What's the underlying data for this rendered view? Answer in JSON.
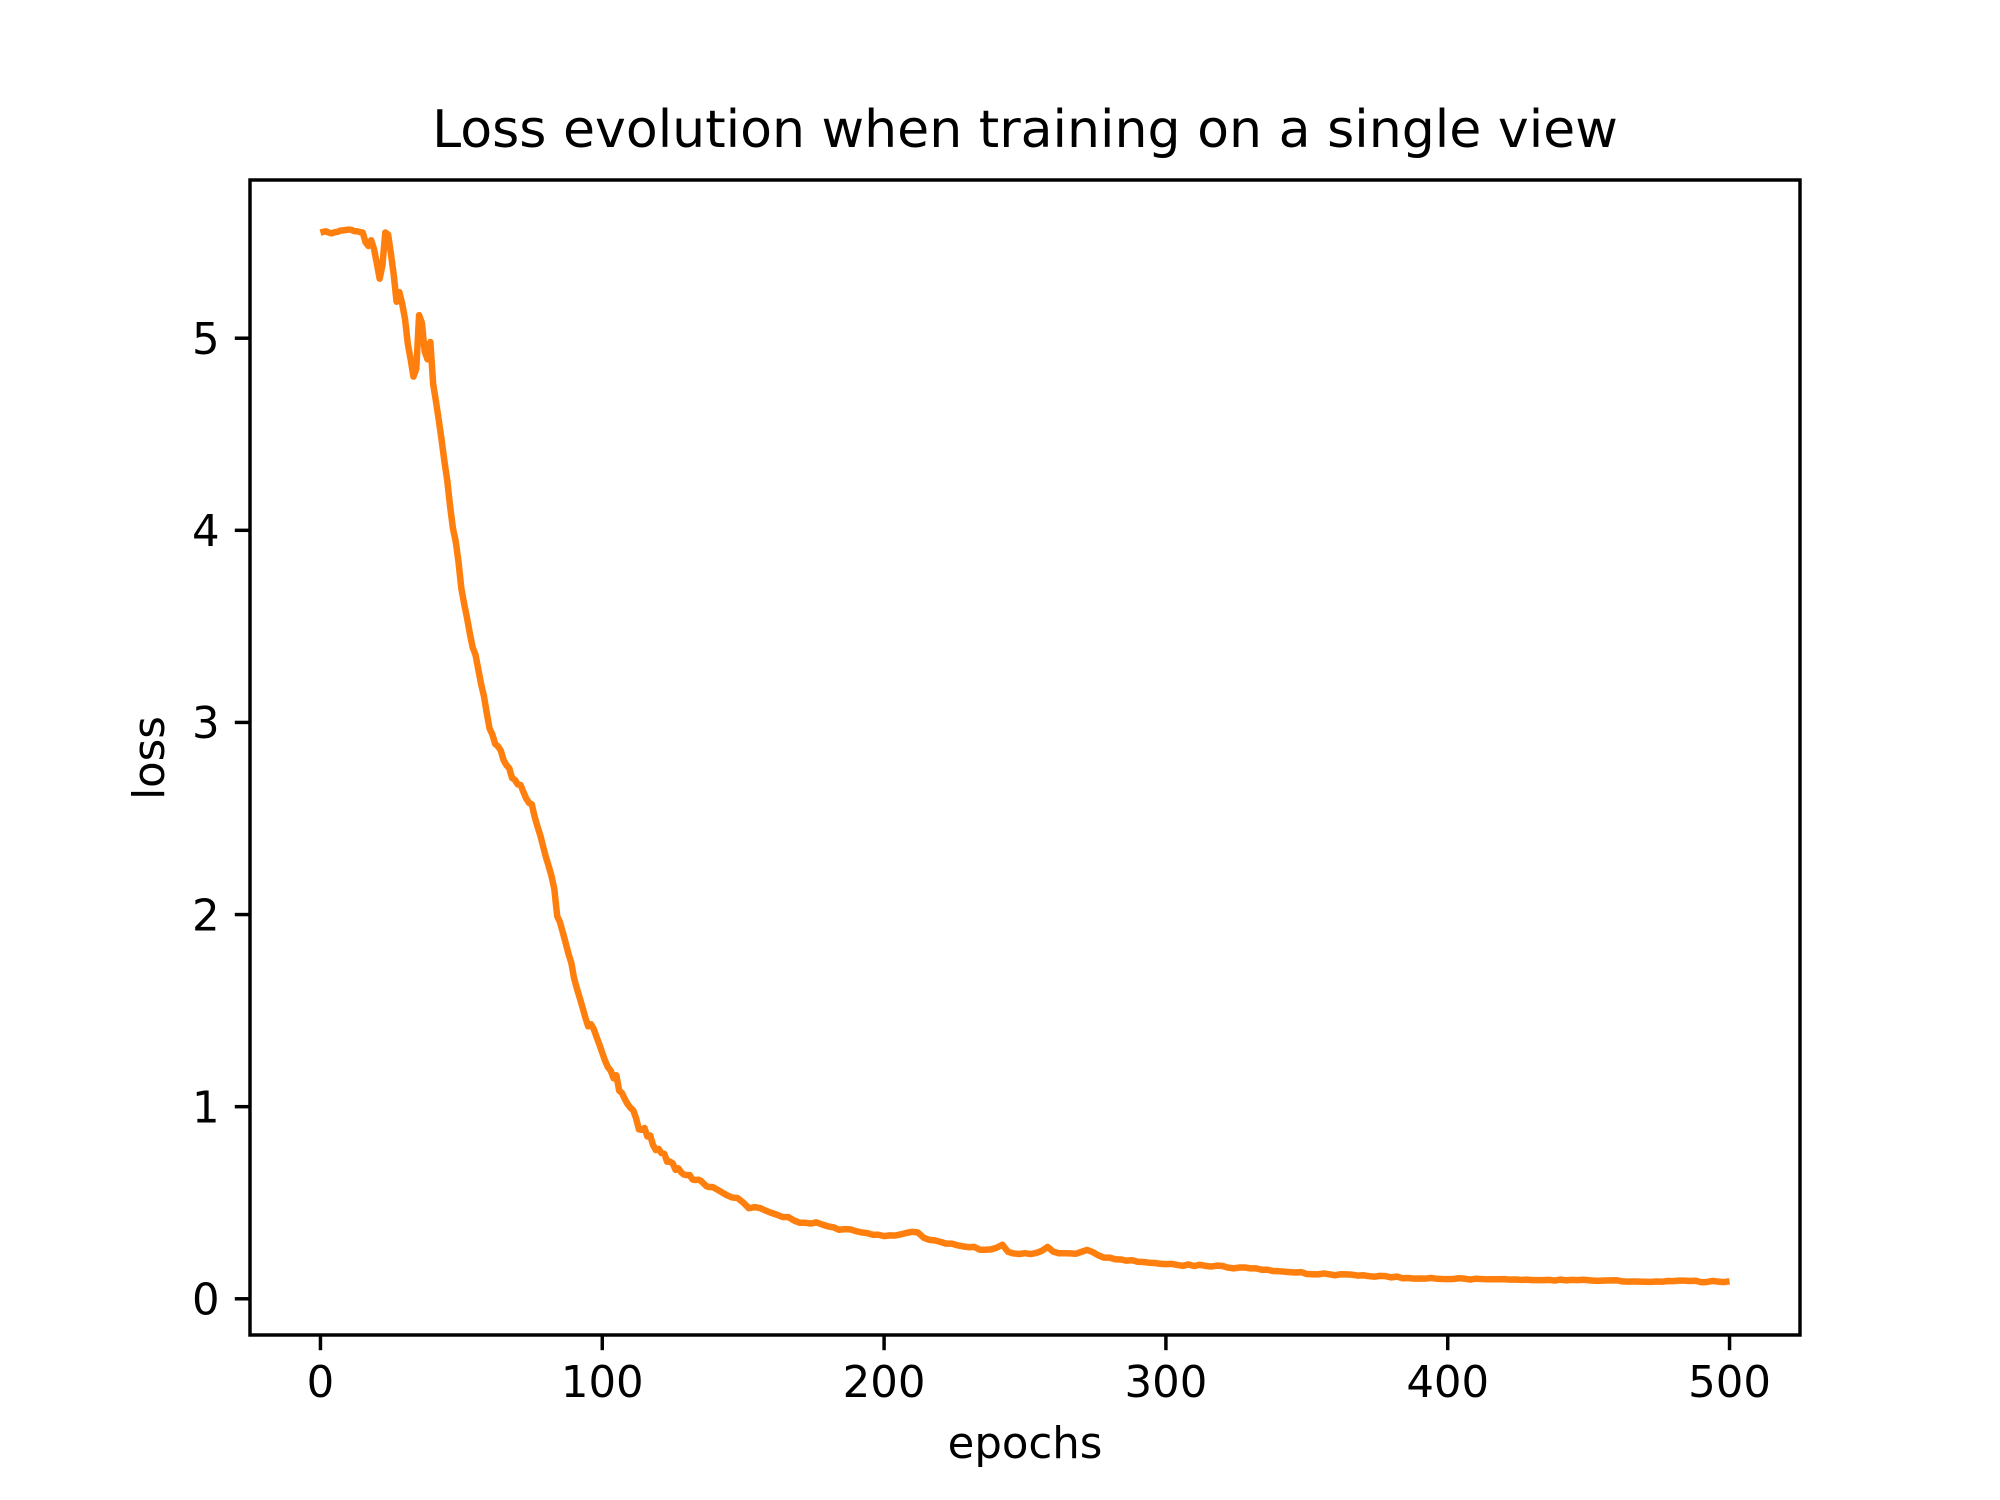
{
  "figure": {
    "title": "Loss evolution when training on a single view",
    "xlabel": "epochs",
    "ylabel": "loss"
  },
  "chart_data": {
    "type": "line",
    "title": "Loss evolution when training on a single view",
    "xlabel": "epochs",
    "ylabel": "loss",
    "grid": false,
    "legend": false,
    "background_color": "#ffffff",
    "line_color": "#ff7f0e",
    "axis_color": "#000000",
    "xlim": [
      -25,
      525
    ],
    "ylim": [
      -0.1885,
      5.8235
    ],
    "xticks": [
      0,
      100,
      200,
      300,
      400,
      500
    ],
    "yticks": [
      0,
      1,
      2,
      3,
      4,
      5
    ],
    "series": [
      {
        "x": [
          0,
          1,
          2,
          3,
          4,
          5,
          6,
          7,
          8,
          9,
          10,
          11,
          12,
          13,
          14,
          15,
          16,
          17,
          18,
          19,
          20,
          21,
          22,
          23,
          24,
          25,
          26,
          27,
          28,
          29,
          30,
          31,
          32,
          33,
          34,
          35,
          36,
          37,
          38,
          39,
          40,
          41,
          42,
          43,
          44,
          45,
          46,
          47,
          48,
          49,
          50,
          51,
          52,
          53,
          54,
          55,
          56,
          57,
          58,
          59,
          60,
          61,
          62,
          63,
          64,
          65,
          66,
          67,
          68,
          69,
          70,
          71,
          72,
          73,
          74,
          75,
          76,
          77,
          78,
          79,
          80,
          81,
          82,
          83,
          84,
          85,
          86,
          87,
          88,
          89,
          90,
          91,
          92,
          93,
          94,
          95,
          96,
          97,
          98,
          99,
          100,
          101,
          102,
          103,
          104,
          105,
          106,
          107,
          108,
          109,
          110,
          111,
          112,
          113,
          114,
          115,
          116,
          117,
          118,
          119,
          120,
          121,
          122,
          123,
          124,
          125,
          126,
          127,
          128,
          129,
          130,
          131,
          132,
          133,
          134,
          135,
          136,
          137,
          138,
          139,
          140,
          142,
          144,
          146,
          148,
          150,
          152,
          154,
          156,
          158,
          160,
          162,
          164,
          166,
          168,
          170,
          172,
          174,
          176,
          178,
          180,
          182,
          184,
          186,
          188,
          190,
          192,
          194,
          196,
          198,
          200,
          202,
          204,
          206,
          208,
          210,
          212,
          214,
          216,
          218,
          220,
          222,
          224,
          226,
          228,
          230,
          232,
          234,
          236,
          238,
          240,
          242,
          244,
          246,
          248,
          250,
          252,
          254,
          256,
          258,
          260,
          262,
          264,
          266,
          268,
          270,
          272,
          274,
          276,
          278,
          280,
          282,
          284,
          286,
          288,
          290,
          292,
          294,
          296,
          298,
          300,
          302,
          304,
          306,
          308,
          310,
          312,
          314,
          316,
          318,
          320,
          322,
          324,
          326,
          328,
          330,
          332,
          334,
          336,
          338,
          340,
          342,
          344,
          346,
          348,
          350,
          352,
          354,
          356,
          358,
          360,
          362,
          364,
          366,
          368,
          370,
          372,
          374,
          376,
          378,
          380,
          382,
          384,
          386,
          388,
          390,
          392,
          394,
          396,
          398,
          400,
          402,
          404,
          406,
          408,
          410,
          412,
          414,
          416,
          418,
          420,
          422,
          424,
          426,
          428,
          430,
          432,
          434,
          436,
          438,
          440,
          442,
          444,
          446,
          448,
          450,
          452,
          454,
          456,
          458,
          460,
          462,
          464,
          466,
          468,
          470,
          472,
          474,
          476,
          478,
          480,
          482,
          484,
          486,
          488,
          490,
          492,
          494,
          496,
          498,
          500
        ],
        "y": [
          5.5498,
          5.5538,
          5.5563,
          5.5496,
          5.5461,
          5.5515,
          5.5532,
          5.56,
          5.5615,
          5.5633,
          5.5655,
          5.5638,
          5.5572,
          5.557,
          5.5523,
          5.55,
          5.5,
          5.48,
          5.51,
          5.465,
          5.39,
          5.31,
          5.38,
          5.55,
          5.54,
          5.44,
          5.33,
          5.19,
          5.24,
          5.18,
          5.1,
          4.97,
          4.89,
          4.8,
          4.84,
          5.12,
          5.08,
          4.93,
          4.89,
          4.98,
          4.76,
          4.67,
          4.5723,
          4.4694,
          4.3572,
          4.2587,
          4.1254,
          4.0112,
          3.9414,
          3.8339,
          3.6966,
          3.6167,
          3.5446,
          3.4642,
          3.3907,
          3.3536,
          3.2767,
          3.2003,
          3.1374,
          3.05,
          2.9687,
          2.9377,
          2.8883,
          2.8755,
          2.8533,
          2.8033,
          2.7773,
          2.7615,
          2.7105,
          2.7012,
          2.6773,
          2.6747,
          2.6389,
          2.6046,
          2.5813,
          2.5733,
          2.5092,
          2.459,
          2.413,
          2.3548,
          2.2994,
          2.251,
          2.1995,
          2.1309,
          1.992,
          1.9602,
          1.9067,
          1.8525,
          1.796,
          1.7499,
          1.6682,
          1.6144,
          1.5665,
          1.5162,
          1.4638,
          1.4182,
          1.429,
          1.4029,
          1.3616,
          1.322,
          1.2801,
          1.2386,
          1.2057,
          1.1869,
          1.148,
          1.1633,
          1.0835,
          1.0707,
          1.0395,
          1.013,
          0.9943,
          0.9807,
          0.9395,
          0.8819,
          0.88,
          0.889,
          0.8447,
          0.8507,
          0.8004,
          0.7747,
          0.7799,
          0.7581,
          0.7548,
          0.7141,
          0.7144,
          0.7047,
          0.6712,
          0.6793,
          0.6581,
          0.6463,
          0.6434,
          0.644,
          0.6214,
          0.618,
          0.6201,
          0.6136,
          0.5997,
          0.586,
          0.5816,
          0.5822,
          0.5752,
          0.5581,
          0.5406,
          0.5276,
          0.5242,
          0.5011,
          0.4713,
          0.4771,
          0.4723,
          0.4587,
          0.4472,
          0.4374,
          0.4256,
          0.4252,
          0.4078,
          0.3961,
          0.3957,
          0.3916,
          0.3978,
          0.3867,
          0.3774,
          0.3722,
          0.3592,
          0.3626,
          0.3616,
          0.3521,
          0.3454,
          0.3417,
          0.3335,
          0.3333,
          0.3261,
          0.3301,
          0.3294,
          0.3357,
          0.3431,
          0.3486,
          0.3452,
          0.3184,
          0.3064,
          0.3039,
          0.2963,
          0.2872,
          0.287,
          0.2786,
          0.2729,
          0.2684,
          0.2703,
          0.2551,
          0.2553,
          0.2574,
          0.2664,
          0.2812,
          0.244,
          0.236,
          0.233,
          0.2374,
          0.2329,
          0.2386,
          0.2499,
          0.2701,
          0.2457,
          0.237,
          0.2368,
          0.2365,
          0.2342,
          0.2442,
          0.2544,
          0.2435,
          0.2263,
          0.2142,
          0.2143,
          0.2056,
          0.2048,
          0.1985,
          0.2008,
          0.1927,
          0.1916,
          0.1878,
          0.1862,
          0.1823,
          0.1807,
          0.1819,
          0.176,
          0.1716,
          0.1786,
          0.1704,
          0.1767,
          0.1715,
          0.1678,
          0.1725,
          0.1711,
          0.1624,
          0.1584,
          0.1627,
          0.1631,
          0.1583,
          0.1584,
          0.1514,
          0.1513,
          0.1444,
          0.1437,
          0.1411,
          0.1389,
          0.1368,
          0.139,
          0.1287,
          0.1276,
          0.127,
          0.1318,
          0.1272,
          0.1224,
          0.1277,
          0.127,
          0.1256,
          0.1207,
          0.1225,
          0.1177,
          0.115,
          0.1194,
          0.1177,
          0.1113,
          0.1152,
          0.1069,
          0.1081,
          0.1049,
          0.1054,
          0.1047,
          0.1085,
          0.1046,
          0.1031,
          0.1025,
          0.1031,
          0.1071,
          0.1047,
          0.1002,
          0.1045,
          0.1027,
          0.1014,
          0.1014,
          0.1018,
          0.1024,
          0.0996,
          0.1003,
          0.0985,
          0.0995,
          0.0971,
          0.0969,
          0.0973,
          0.0986,
          0.0948,
          0.0997,
          0.096,
          0.0986,
          0.0971,
          0.0989,
          0.0965,
          0.0941,
          0.0937,
          0.0951,
          0.096,
          0.0964,
          0.0904,
          0.0896,
          0.0897,
          0.0893,
          0.0888,
          0.0881,
          0.0898,
          0.0884,
          0.0927,
          0.0919,
          0.0945,
          0.0943,
          0.0924,
          0.0938,
          0.0862,
          0.0876,
          0.093,
          0.0892,
          0.0869,
          0.0911
        ]
      }
    ]
  }
}
